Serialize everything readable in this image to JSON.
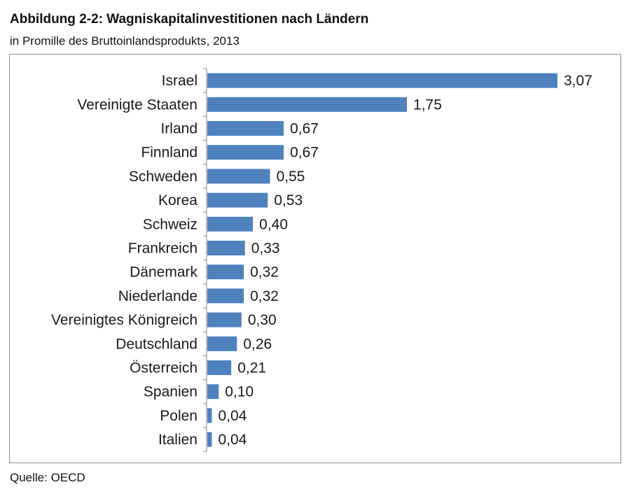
{
  "title": "Abbildung 2-2: Wagniskapitalinvestitionen nach Ländern",
  "subtitle": "in Promille des Bruttoinlandsprodukts, 2013",
  "source": "Quelle: OECD",
  "chart_data": {
    "type": "bar",
    "orientation": "horizontal",
    "categories": [
      "Israel",
      "Vereinigte Staaten",
      "Irland",
      "Finnland",
      "Schweden",
      "Korea",
      "Schweiz",
      "Frankreich",
      "Dänemark",
      "Niederlande",
      "Vereinigtes Königreich",
      "Deutschland",
      "Österreich",
      "Spanien",
      "Polen",
      "Italien"
    ],
    "values": [
      3.07,
      1.75,
      0.67,
      0.67,
      0.55,
      0.53,
      0.4,
      0.33,
      0.32,
      0.32,
      0.3,
      0.26,
      0.21,
      0.1,
      0.04,
      0.04
    ],
    "data_labels": [
      "3,07",
      "1,75",
      "0,67",
      "0,67",
      "0,55",
      "0,53",
      "0,40",
      "0,33",
      "0,32",
      "0,32",
      "0,30",
      "0,26",
      "0,21",
      "0,10",
      "0,04",
      "0,04"
    ],
    "bar_color": "#4f81bd",
    "grid": false,
    "legend": "none",
    "xlim": [
      0,
      3.07
    ]
  }
}
